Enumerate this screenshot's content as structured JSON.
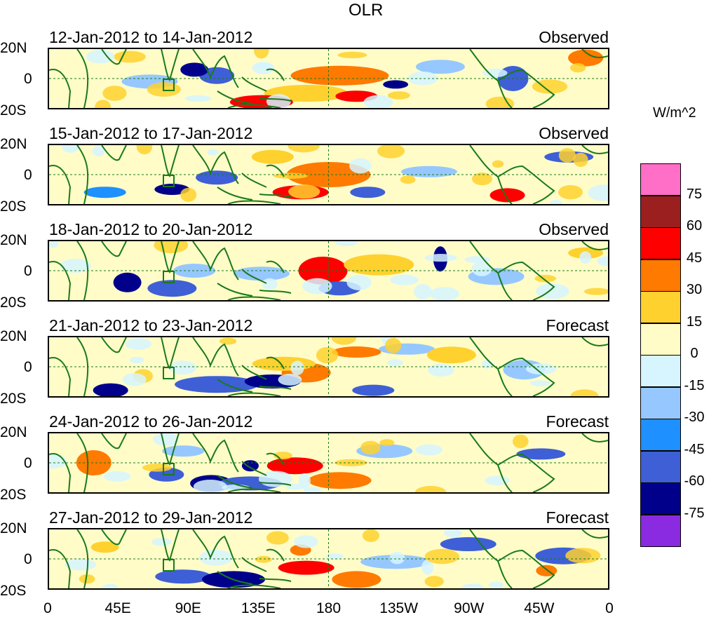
{
  "title": "OLR",
  "units_label": "W/m^2",
  "lat_labels": [
    "20N",
    "0",
    "20S"
  ],
  "lon_labels": [
    "0",
    "45E",
    "90E",
    "135E",
    "180",
    "135W",
    "90W",
    "45W",
    "0"
  ],
  "panels": [
    {
      "label": "12-Jan-2012 to 14-Jan-2012",
      "tag": "Observed"
    },
    {
      "label": "15-Jan-2012 to 17-Jan-2012",
      "tag": "Observed"
    },
    {
      "label": "18-Jan-2012 to 20-Jan-2012",
      "tag": "Observed"
    },
    {
      "label": "21-Jan-2012 to 23-Jan-2012",
      "tag": "Forecast"
    },
    {
      "label": "24-Jan-2012 to 26-Jan-2012",
      "tag": "Forecast"
    },
    {
      "label": "27-Jan-2012 to 29-Jan-2012",
      "tag": "Forecast"
    }
  ],
  "legend": {
    "labels": [
      "75",
      "60",
      "45",
      "30",
      "15",
      "0",
      "-15",
      "-30",
      "-45",
      "-60",
      "-75"
    ],
    "colors": [
      "#ff6ec7",
      "#9c1f1f",
      "#ff0000",
      "#ff7a00",
      "#ffd12e",
      "#fffcc8",
      "#d6f5ff",
      "#96c8ff",
      "#1e90ff",
      "#3e5fd6",
      "#00008b",
      "#8a2be2"
    ]
  },
  "colors": {
    "coastline": "#1a7a1a",
    "equator_line": "#1a7a1a"
  }
}
